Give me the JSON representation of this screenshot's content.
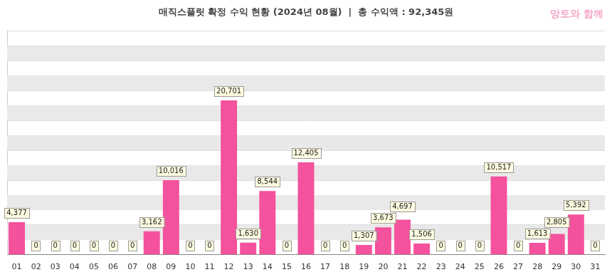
{
  "chart_data": {
    "type": "bar",
    "title": "매직스플릿 확정 수익 현황 (2024년 08월)  |  총 수익액 : 92,345원",
    "annotations": [
      "망토와 함께"
    ],
    "categories": [
      "01",
      "02",
      "03",
      "04",
      "05",
      "06",
      "07",
      "08",
      "09",
      "10",
      "11",
      "12",
      "13",
      "14",
      "15",
      "16",
      "17",
      "18",
      "19",
      "20",
      "21",
      "22",
      "23",
      "24",
      "25",
      "26",
      "27",
      "28",
      "29",
      "30",
      "31"
    ],
    "values": [
      4377,
      0,
      0,
      0,
      0,
      0,
      0,
      3162,
      10016,
      0,
      0,
      20701,
      1630,
      8544,
      0,
      12405,
      0,
      0,
      1307,
      3673,
      4697,
      1506,
      0,
      0,
      0,
      10517,
      0,
      1613,
      2805,
      5392,
      0
    ],
    "value_labels": [
      "4,377",
      "0",
      "0",
      "0",
      "0",
      "0",
      "0",
      "3,162",
      "10,016",
      "0",
      "0",
      "20,701",
      "1,630",
      "8,544",
      "0",
      "12,405",
      "0",
      "0",
      "1,307",
      "3,673",
      "4,697",
      "1,506",
      "0",
      "0",
      "0",
      "10,517",
      "0",
      "1,613",
      "2,805",
      "5,392",
      "0"
    ],
    "color": "#f4529c",
    "ylim": [
      0,
      30000
    ],
    "yticks": [
      0,
      2000,
      4000,
      6000,
      8000,
      10000,
      12000,
      14000,
      16000,
      18000,
      20000,
      22000,
      24000,
      26000,
      28000,
      30000
    ],
    "grid": true,
    "data_labels": true,
    "tick_labels": "x"
  }
}
